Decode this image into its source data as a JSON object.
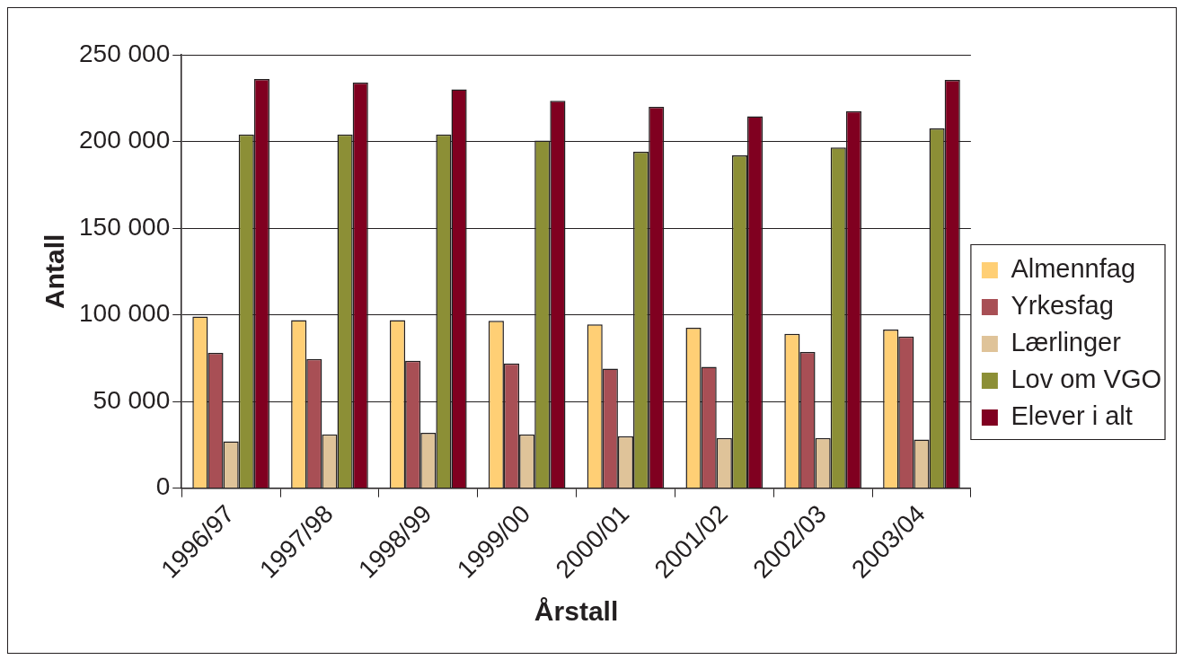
{
  "chart_data": {
    "type": "bar",
    "xlabel": "Årstall",
    "ylabel": "Antall",
    "categories": [
      "1996/97",
      "1997/98",
      "1998/99",
      "1999/00",
      "2000/01",
      "2001/02",
      "2002/03",
      "2003/04"
    ],
    "series": [
      {
        "name": "Almennfag",
        "color": "#ffcf75",
        "values": [
          99000,
          97000,
          97000,
          96500,
          94500,
          92500,
          89000,
          91500
        ]
      },
      {
        "name": "Yrkesfag",
        "color": "#a84f55",
        "values": [
          78000,
          74500,
          73500,
          72000,
          69000,
          70000,
          78500,
          87500
        ]
      },
      {
        "name": "Lærlinger",
        "color": "#dfc399",
        "values": [
          27000,
          31000,
          32000,
          31000,
          30000,
          29000,
          29000,
          28000
        ]
      },
      {
        "name": "Lov om VGO",
        "color": "#8c8f36",
        "values": [
          204000,
          204000,
          204000,
          200500,
          194000,
          192000,
          196500,
          207500
        ]
      },
      {
        "name": "Elever i alt",
        "color": "#800020",
        "values": [
          236000,
          234000,
          230000,
          223500,
          220000,
          214500,
          217500,
          235500
        ]
      }
    ],
    "ylim": [
      0,
      250000
    ],
    "yticks": [
      {
        "value": 0,
        "label": "0"
      },
      {
        "value": 50000,
        "label": "50 000"
      },
      {
        "value": 100000,
        "label": "100 000"
      },
      {
        "value": 150000,
        "label": "150 000"
      },
      {
        "value": 200000,
        "label": "200 000"
      },
      {
        "value": 250000,
        "label": "250 000"
      }
    ],
    "grid": "y",
    "legend": "right"
  }
}
